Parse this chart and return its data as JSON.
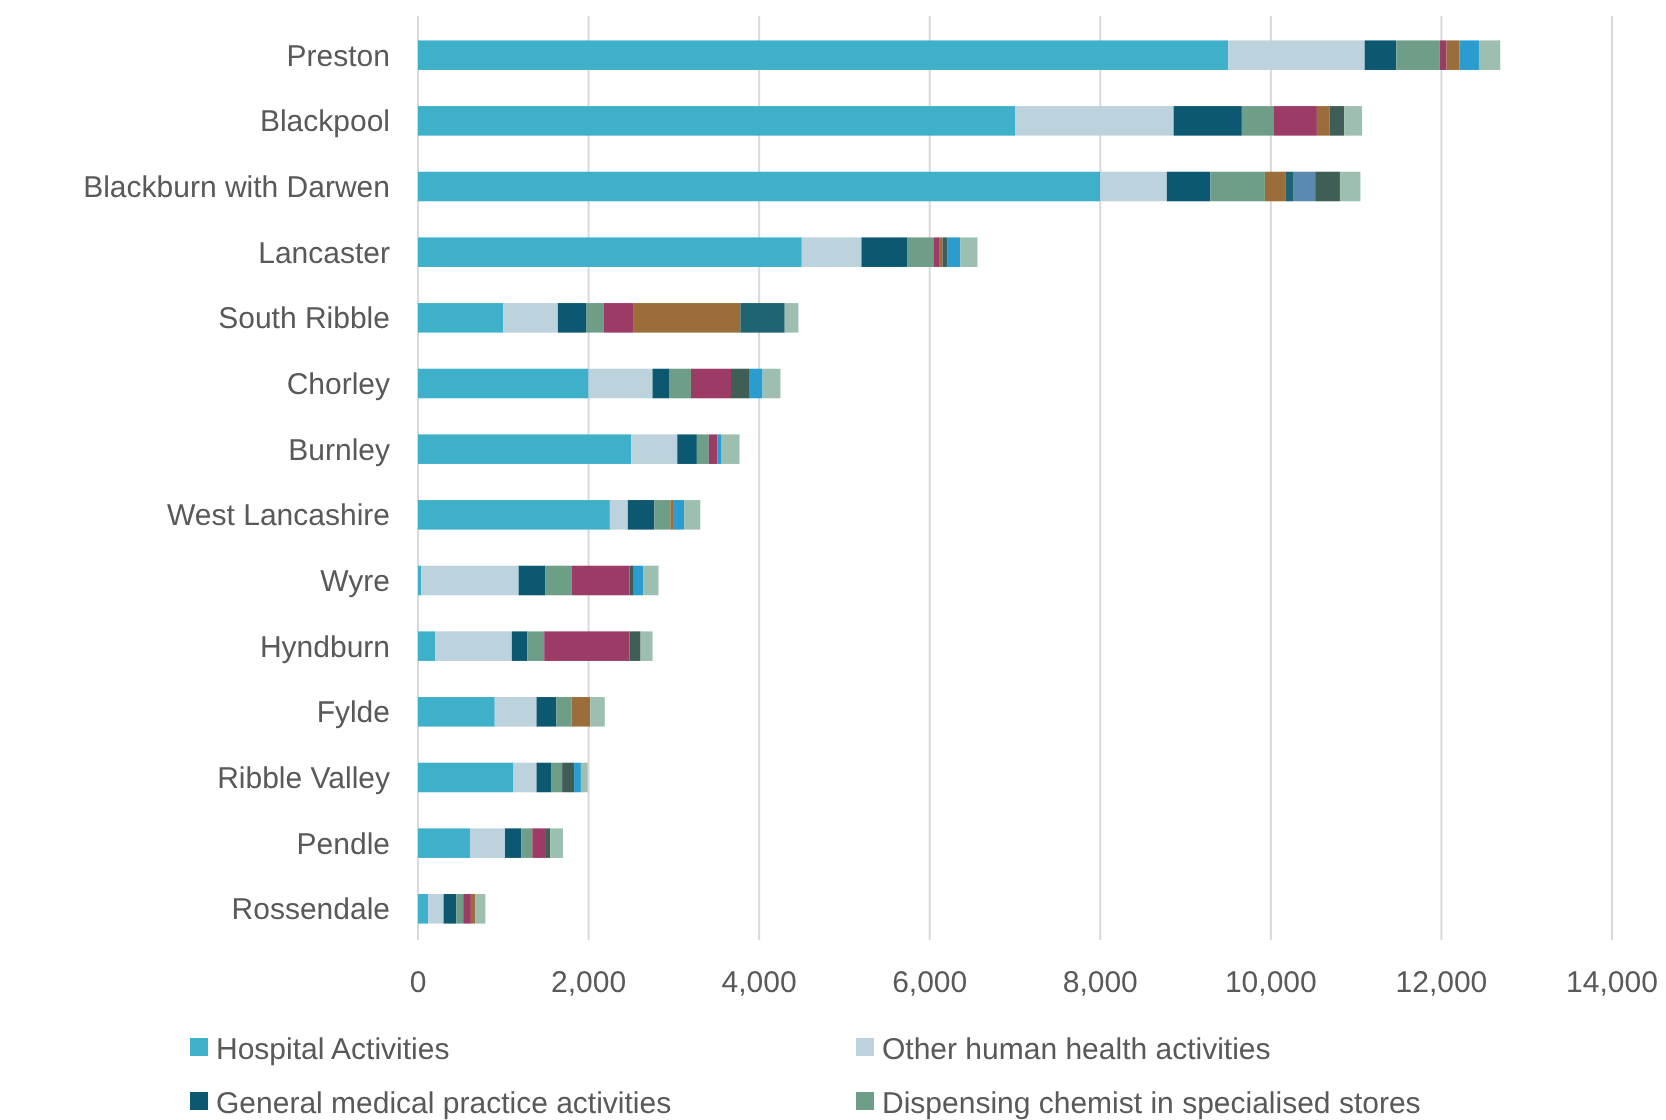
{
  "chart_data": {
    "type": "bar",
    "orientation": "horizontal",
    "stacked": true,
    "grid": "x",
    "legend": "bottom",
    "categories": [
      "Preston",
      "Blackpool",
      "Blackburn with Darwen",
      "Lancaster",
      "South Ribble",
      "Chorley",
      "Burnley",
      "West Lancashire",
      "Wyre",
      "Hyndburn",
      "Fylde",
      "Ribble Valley",
      "Pendle",
      "Rossendale"
    ],
    "xlim": [
      0,
      14000
    ],
    "xticks": [
      0,
      {
        "value": 2000,
        "label": "2,000"
      },
      {
        "value": 4000,
        "label": "4,000"
      },
      {
        "value": 6000,
        "label": "6,000"
      },
      {
        "value": 8000,
        "label": "8,000"
      },
      {
        "value": 10000,
        "label": "10,000"
      },
      {
        "value": 12000,
        "label": "12,000"
      },
      {
        "value": 14000,
        "label": "14,000"
      }
    ],
    "series": [
      {
        "name": "Hospital Activities",
        "color": "#3fb0c9",
        "values": [
          9500,
          7000,
          8000,
          4500,
          1000,
          2000,
          2500,
          2250,
          40,
          200,
          900,
          1120,
          610,
          120
        ]
      },
      {
        "name": "Other human health activities",
        "color": "#bcd2dc",
        "values": [
          1600,
          1860,
          780,
          700,
          640,
          750,
          540,
          210,
          1140,
          900,
          490,
          270,
          410,
          180
        ]
      },
      {
        "name": "General medical practice activities",
        "color": "#0b5870",
        "values": [
          370,
          800,
          510,
          540,
          330,
          200,
          230,
          310,
          310,
          180,
          230,
          170,
          190,
          150
        ]
      },
      {
        "name": "Dispensing chemist in specialised stores",
        "color": "#6f9e88",
        "values": [
          510,
          370,
          640,
          310,
          210,
          250,
          140,
          190,
          310,
          200,
          180,
          130,
          130,
          80
        ]
      },
      {
        "color": "#9b3b66",
        "values": [
          80,
          510,
          0,
          60,
          350,
          470,
          100,
          0,
          680,
          1000,
          0,
          0,
          160,
          90
        ]
      },
      {
        "color": "#9b6d3a",
        "values": [
          150,
          150,
          240,
          40,
          1250,
          0,
          0,
          40,
          0,
          0,
          220,
          0,
          0,
          50
        ]
      },
      {
        "color": "#1f6473",
        "values": [
          0,
          0,
          90,
          0,
          520,
          0,
          0,
          0,
          0,
          0,
          0,
          0,
          0,
          0
        ]
      },
      {
        "color": "#5a8ab0",
        "values": [
          0,
          0,
          260,
          0,
          0,
          0,
          0,
          0,
          0,
          0,
          0,
          0,
          0,
          0
        ]
      },
      {
        "color": "#3f5e55",
        "values": [
          0,
          170,
          290,
          60,
          0,
          220,
          0,
          0,
          50,
          130,
          0,
          140,
          50,
          0
        ]
      },
      {
        "color": "#2b9ccf",
        "values": [
          230,
          0,
          0,
          150,
          0,
          150,
          50,
          120,
          110,
          0,
          0,
          80,
          0,
          0
        ]
      },
      {
        "color": "#9dbfb0",
        "values": [
          250,
          210,
          240,
          200,
          160,
          210,
          210,
          190,
          180,
          140,
          170,
          80,
          150,
          120
        ]
      }
    ]
  }
}
